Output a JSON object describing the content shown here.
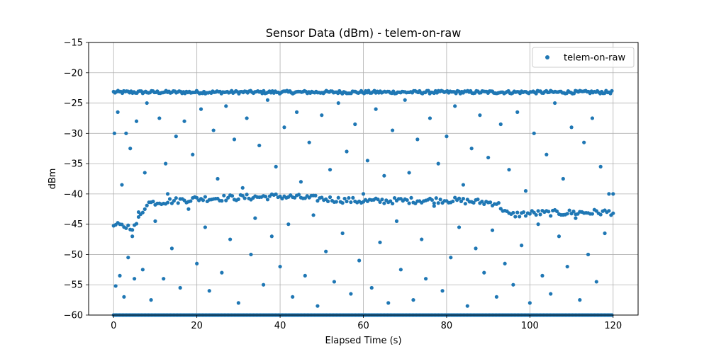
{
  "chart_data": {
    "type": "scatter",
    "title": "Sensor Data (dBm) - telem-on-raw",
    "xlabel": "Elapsed Time (s)",
    "ylabel": "dBm",
    "xlim": [
      -6,
      126
    ],
    "ylim": [
      -60,
      -15
    ],
    "xticks": [
      0,
      20,
      40,
      60,
      80,
      100,
      120
    ],
    "yticks": [
      -60,
      -55,
      -50,
      -45,
      -40,
      -35,
      -30,
      -25,
      -20,
      -15
    ],
    "xtick_labels": [
      "0",
      "20",
      "40",
      "60",
      "80",
      "100",
      "120"
    ],
    "ytick_labels": [
      "−60",
      "−55",
      "−50",
      "−45",
      "−40",
      "−35",
      "−30",
      "−25",
      "−20",
      "−15"
    ],
    "grid": true,
    "legend_position": "top-right",
    "series": [
      {
        "name": "telem-on-raw",
        "color": "#1f77b4",
        "marker": "circle",
        "bands": [
          {
            "x": [
              0,
              120
            ],
            "y": [
              -23.2,
              -23.2
            ],
            "density": "continuous"
          },
          {
            "x": [
              0,
              5,
              8,
              20,
              40,
              60,
              80,
              92,
              95,
              100,
              120
            ],
            "y": [
              -45.2,
              -45.5,
              -41.5,
              -40.8,
              -40.4,
              -41.2,
              -41.0,
              -41.5,
              -43.5,
              -43.2,
              -43.0
            ],
            "density": "dense"
          },
          {
            "x": [
              0,
              120
            ],
            "y": [
              -60,
              -60
            ],
            "density": "continuous"
          }
        ],
        "scattered_points": [
          [
            0.2,
            -30.0
          ],
          [
            0.5,
            -55.2
          ],
          [
            1.0,
            -26.5
          ],
          [
            1.5,
            -53.5
          ],
          [
            2.0,
            -38.5
          ],
          [
            2.5,
            -57.0
          ],
          [
            3.0,
            -30.0
          ],
          [
            3.5,
            -50.5
          ],
          [
            4.0,
            -32.5
          ],
          [
            4.5,
            -47.0
          ],
          [
            5.0,
            -54.0
          ],
          [
            5.5,
            -28.0
          ],
          [
            6.0,
            -43.0
          ],
          [
            7.0,
            -52.5
          ],
          [
            7.5,
            -36.5
          ],
          [
            8.0,
            -25.0
          ],
          [
            9.0,
            -57.5
          ],
          [
            10.0,
            -44.5
          ],
          [
            11.0,
            -27.5
          ],
          [
            12.0,
            -54.0
          ],
          [
            12.5,
            -35.0
          ],
          [
            13.0,
            -40.0
          ],
          [
            14.0,
            -49.0
          ],
          [
            15.0,
            -30.5
          ],
          [
            16.0,
            -55.5
          ],
          [
            17.0,
            -28.0
          ],
          [
            18.0,
            -42.5
          ],
          [
            19.0,
            -33.5
          ],
          [
            20.0,
            -51.5
          ],
          [
            21.0,
            -26.0
          ],
          [
            22.0,
            -45.5
          ],
          [
            23.0,
            -56.0
          ],
          [
            24.0,
            -29.5
          ],
          [
            25.0,
            -37.5
          ],
          [
            26.0,
            -53.0
          ],
          [
            27.0,
            -25.5
          ],
          [
            28.0,
            -47.5
          ],
          [
            29.0,
            -31.0
          ],
          [
            30.0,
            -58.0
          ],
          [
            31.0,
            -39.0
          ],
          [
            32.0,
            -27.5
          ],
          [
            33.0,
            -50.0
          ],
          [
            34.0,
            -44.0
          ],
          [
            35.0,
            -32.0
          ],
          [
            36.0,
            -55.0
          ],
          [
            37.0,
            -24.5
          ],
          [
            38.0,
            -47.0
          ],
          [
            39.0,
            -35.5
          ],
          [
            40.0,
            -52.0
          ],
          [
            41.0,
            -29.0
          ],
          [
            42.0,
            -45.0
          ],
          [
            43.0,
            -57.0
          ],
          [
            44.0,
            -26.5
          ],
          [
            45.0,
            -38.0
          ],
          [
            46.0,
            -53.5
          ],
          [
            47.0,
            -31.5
          ],
          [
            48.0,
            -43.5
          ],
          [
            49.0,
            -58.5
          ],
          [
            50.0,
            -27.0
          ],
          [
            51.0,
            -49.5
          ],
          [
            52.0,
            -36.0
          ],
          [
            53.0,
            -54.5
          ],
          [
            54.0,
            -25.0
          ],
          [
            55.0,
            -46.5
          ],
          [
            56.0,
            -33.0
          ],
          [
            57.0,
            -56.5
          ],
          [
            58.0,
            -28.5
          ],
          [
            59.0,
            -51.0
          ],
          [
            60.0,
            -40.0
          ],
          [
            61.0,
            -34.5
          ],
          [
            62.0,
            -55.5
          ],
          [
            63.0,
            -26.0
          ],
          [
            64.0,
            -48.0
          ],
          [
            65.0,
            -37.0
          ],
          [
            66.0,
            -58.0
          ],
          [
            67.0,
            -29.5
          ],
          [
            68.0,
            -44.5
          ],
          [
            69.0,
            -52.5
          ],
          [
            70.0,
            -24.5
          ],
          [
            71.0,
            -36.5
          ],
          [
            72.0,
            -57.5
          ],
          [
            73.0,
            -31.0
          ],
          [
            74.0,
            -47.5
          ],
          [
            75.0,
            -54.0
          ],
          [
            76.0,
            -27.5
          ],
          [
            77.0,
            -42.0
          ],
          [
            78.0,
            -35.0
          ],
          [
            79.0,
            -56.0
          ],
          [
            80.0,
            -30.5
          ],
          [
            81.0,
            -50.5
          ],
          [
            82.0,
            -25.5
          ],
          [
            83.0,
            -45.5
          ],
          [
            84.0,
            -38.5
          ],
          [
            85.0,
            -58.5
          ],
          [
            86.0,
            -32.5
          ],
          [
            87.0,
            -49.0
          ],
          [
            88.0,
            -27.0
          ],
          [
            89.0,
            -53.0
          ],
          [
            90.0,
            -34.0
          ],
          [
            91.0,
            -46.0
          ],
          [
            92.0,
            -57.0
          ],
          [
            93.0,
            -28.5
          ],
          [
            94.0,
            -51.5
          ],
          [
            95.0,
            -36.0
          ],
          [
            96.0,
            -55.0
          ],
          [
            97.0,
            -26.5
          ],
          [
            98.0,
            -48.5
          ],
          [
            99.0,
            -39.5
          ],
          [
            100.0,
            -58.0
          ],
          [
            101.0,
            -30.0
          ],
          [
            102.0,
            -45.0
          ],
          [
            103.0,
            -53.5
          ],
          [
            104.0,
            -33.5
          ],
          [
            105.0,
            -56.5
          ],
          [
            106.0,
            -25.0
          ],
          [
            107.0,
            -47.0
          ],
          [
            108.0,
            -37.5
          ],
          [
            109.0,
            -52.0
          ],
          [
            110.0,
            -29.0
          ],
          [
            111.0,
            -44.0
          ],
          [
            112.0,
            -57.5
          ],
          [
            113.0,
            -31.5
          ],
          [
            114.0,
            -50.0
          ],
          [
            115.0,
            -27.5
          ],
          [
            116.0,
            -54.5
          ],
          [
            117.0,
            -35.5
          ],
          [
            118.0,
            -46.5
          ],
          [
            119.0,
            -40.0
          ],
          [
            120.0,
            -40.0
          ]
        ]
      }
    ]
  }
}
